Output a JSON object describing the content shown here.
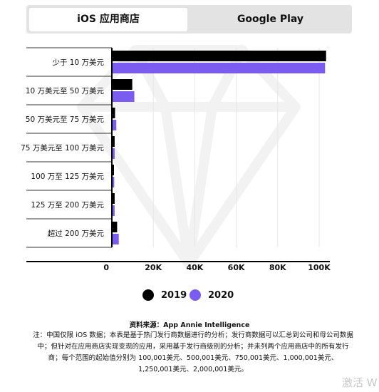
{
  "tabs": [
    {
      "label": "iOS 应用商店",
      "active": true
    },
    {
      "label": "Google Play",
      "active": false
    }
  ],
  "chart_data": {
    "type": "bar",
    "orientation": "horizontal",
    "categories": [
      "少于 10 万美元",
      "10 万美元至 50 万美元",
      "50 万美元至 75 万美元",
      "75 万美元至 100 万美元",
      "100 万至 125 万美元",
      "125 万至 200 万美元",
      "超过 200 万美元"
    ],
    "series": [
      {
        "name": "2019",
        "color": "#000000",
        "values": [
          103,
          9.5,
          1.2,
          1.0,
          0.4,
          1.0,
          2.2
        ]
      },
      {
        "name": "2020",
        "color": "#7b5cf0",
        "values": [
          102.5,
          10.5,
          1.8,
          1.0,
          0.8,
          1.0,
          3.0
        ]
      }
    ],
    "x_ticks": [
      "0",
      "20K",
      "40K",
      "60K",
      "80K",
      "100K"
    ],
    "xlim": [
      0,
      110
    ],
    "grid": true,
    "legend_position": "bottom"
  },
  "source": {
    "title": "资料来源：App Annie Intelligence",
    "note": "注：中国仅限 iOS 数据；本表是基于热门发行商数据进行的分析；发行商数据可以汇总到公司和母公司数据中；但针对在应用商店实现变现的应用，采用基于发行商级别的分析；并未列两个应用商店中的所有发行商；每个范围的起始值分别为 100,001美元、500,001美元、750,001美元、1,000,001美元、1,250,001美元、2,000,001美元。"
  },
  "overlay_text": "激活 W"
}
